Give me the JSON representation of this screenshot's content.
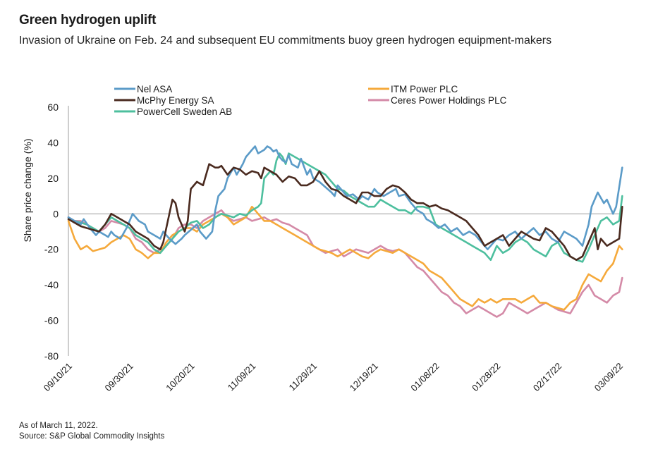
{
  "header": {
    "title": "Green hydrogen uplift",
    "subtitle": "Invasion of Ukraine on Feb. 24 and subsequent EU commitments buoy green hydrogen equipment-makers"
  },
  "footer": {
    "note": "As of March 11, 2022.",
    "source": "Source: S&P Global Commodity Insights"
  },
  "chart_data": {
    "type": "line",
    "title": "Green hydrogen uplift",
    "xlabel": "",
    "ylabel": "Share price change (%)",
    "ylim": [
      -80,
      60
    ],
    "yticks": [
      60,
      40,
      20,
      0,
      -20,
      -40,
      -60,
      -80
    ],
    "x_unit": "days since 09/10/21",
    "xlim": [
      0,
      181
    ],
    "xticks": [
      {
        "day": 0,
        "label": "09/10/21"
      },
      {
        "day": 20,
        "label": "09/30/21"
      },
      {
        "day": 40,
        "label": "10/20/21"
      },
      {
        "day": 60,
        "label": "11/09/21"
      },
      {
        "day": 80,
        "label": "11/29/21"
      },
      {
        "day": 100,
        "label": "12/19/21"
      },
      {
        "day": 120,
        "label": "01/08/22"
      },
      {
        "day": 140,
        "label": "01/28/22"
      },
      {
        "day": 160,
        "label": "02/17/22"
      },
      {
        "day": 180,
        "label": "03/09/22"
      }
    ],
    "grid": false,
    "zero_line": true,
    "legend": {
      "position": "top",
      "columns": 2
    },
    "series": [
      {
        "name": "Nel ASA",
        "color": "#5b9bc8",
        "x": [
          0,
          2,
          4,
          5,
          7,
          9,
          10,
          12,
          13,
          14,
          15,
          17,
          19,
          21,
          22,
          23,
          25,
          26,
          28,
          30,
          31,
          33,
          35,
          37,
          38,
          40,
          42,
          43,
          44,
          45,
          47,
          48,
          49,
          51,
          52,
          54,
          55,
          57,
          58,
          59,
          60,
          61,
          62,
          64,
          65,
          66,
          67,
          68,
          69,
          70,
          71,
          72,
          73,
          75,
          76,
          78,
          79,
          80,
          82,
          84,
          86,
          87,
          88,
          90,
          91,
          93,
          95,
          96,
          98,
          100,
          101,
          103,
          105,
          107,
          108,
          110,
          112,
          114,
          116,
          117,
          119,
          121,
          123,
          125,
          127,
          129,
          131,
          133,
          135,
          137,
          138,
          140,
          142,
          144,
          146,
          148,
          150,
          152,
          154,
          156,
          158,
          160,
          162,
          164,
          166,
          168,
          170,
          171,
          173,
          175,
          176,
          178,
          179,
          181
        ],
        "y": [
          -2,
          -4,
          -6,
          -3,
          -8,
          -12,
          -10,
          -12,
          -13,
          -10,
          -12,
          -14,
          -8,
          0,
          -2,
          -4,
          -6,
          -10,
          -12,
          -14,
          -10,
          -14,
          -17,
          -14,
          -12,
          -9,
          -6,
          -10,
          -12,
          -14,
          -10,
          2,
          10,
          14,
          20,
          26,
          22,
          28,
          32,
          34,
          36,
          38,
          34,
          36,
          38,
          37,
          35,
          36,
          32,
          30,
          29,
          33,
          28,
          26,
          31,
          22,
          25,
          20,
          18,
          15,
          12,
          10,
          16,
          12,
          10,
          11,
          8,
          10,
          8,
          14,
          12,
          10,
          12,
          14,
          10,
          11,
          6,
          2,
          0,
          -3,
          -5,
          -8,
          -6,
          -10,
          -8,
          -12,
          -10,
          -12,
          -16,
          -20,
          -18,
          -14,
          -15,
          -12,
          -10,
          -14,
          -11,
          -8,
          -12,
          -10,
          -14,
          -16,
          -10,
          -12,
          -14,
          -18,
          -6,
          4,
          12,
          6,
          8,
          0,
          4,
          26
        ],
        "_note": "approximate readings"
      },
      {
        "name": "McPhy Energy SA",
        "color": "#4a2a1f",
        "x": [
          0,
          2,
          4,
          6,
          8,
          10,
          12,
          14,
          16,
          18,
          20,
          22,
          24,
          26,
          28,
          30,
          31,
          32,
          34,
          35,
          36,
          38,
          39,
          40,
          42,
          44,
          46,
          48,
          49,
          50,
          52,
          54,
          56,
          58,
          60,
          62,
          63,
          64,
          66,
          68,
          70,
          72,
          74,
          76,
          78,
          80,
          82,
          84,
          86,
          88,
          90,
          92,
          94,
          96,
          98,
          100,
          102,
          104,
          106,
          108,
          110,
          112,
          114,
          116,
          118,
          120,
          122,
          124,
          126,
          128,
          130,
          132,
          134,
          136,
          138,
          140,
          142,
          144,
          146,
          148,
          150,
          152,
          154,
          156,
          158,
          160,
          162,
          164,
          166,
          168,
          170,
          172,
          173,
          174,
          176,
          178,
          180,
          181
        ],
        "y": [
          -3,
          -5,
          -7,
          -8,
          -9,
          -10,
          -6,
          0,
          -2,
          -4,
          -6,
          -10,
          -12,
          -14,
          -18,
          -20,
          -16,
          -8,
          8,
          6,
          -2,
          -10,
          -4,
          14,
          18,
          16,
          28,
          26,
          26,
          27,
          22,
          26,
          25,
          22,
          24,
          23,
          20,
          26,
          24,
          22,
          18,
          21,
          20,
          16,
          16,
          18,
          24,
          18,
          14,
          13,
          10,
          8,
          6,
          12,
          12,
          10,
          10,
          14,
          16,
          15,
          12,
          8,
          6,
          6,
          4,
          5,
          3,
          2,
          0,
          -2,
          -4,
          -8,
          -12,
          -18,
          -16,
          -14,
          -12,
          -18,
          -14,
          -10,
          -12,
          -14,
          -15,
          -8,
          -10,
          -14,
          -18,
          -24,
          -26,
          -24,
          -16,
          -8,
          -20,
          -14,
          -18,
          -16,
          -14,
          4
        ]
      },
      {
        "name": "PowerCell Sweden AB",
        "color": "#4dbf9e",
        "x": [
          0,
          2,
          4,
          6,
          8,
          10,
          12,
          14,
          16,
          18,
          20,
          22,
          24,
          26,
          28,
          30,
          32,
          34,
          36,
          38,
          40,
          42,
          44,
          46,
          48,
          50,
          52,
          54,
          56,
          58,
          60,
          62,
          63,
          64,
          65,
          66,
          67,
          68,
          69,
          70,
          71,
          72,
          74,
          76,
          78,
          80,
          82,
          84,
          86,
          88,
          90,
          92,
          94,
          96,
          98,
          100,
          102,
          104,
          106,
          108,
          110,
          112,
          114,
          116,
          118,
          120,
          122,
          124,
          126,
          128,
          130,
          132,
          134,
          136,
          138,
          140,
          142,
          144,
          146,
          148,
          150,
          152,
          154,
          156,
          158,
          160,
          162,
          164,
          166,
          168,
          170,
          172,
          174,
          176,
          178,
          180,
          181
        ],
        "y": [
          -3,
          -4,
          -5,
          -6,
          -8,
          -10,
          -6,
          -2,
          -4,
          -6,
          -8,
          -12,
          -14,
          -16,
          -20,
          -22,
          -18,
          -14,
          -10,
          -8,
          -5,
          -4,
          -8,
          -6,
          -2,
          0,
          -1,
          -2,
          0,
          -1,
          2,
          4,
          6,
          20,
          22,
          24,
          22,
          30,
          34,
          32,
          28,
          34,
          32,
          30,
          28,
          26,
          24,
          22,
          18,
          14,
          13,
          10,
          8,
          6,
          4,
          4,
          8,
          6,
          4,
          2,
          2,
          0,
          4,
          4,
          3,
          -6,
          -8,
          -10,
          -12,
          -14,
          -16,
          -18,
          -20,
          -22,
          -26,
          -18,
          -22,
          -20,
          -16,
          -14,
          -16,
          -20,
          -22,
          -24,
          -18,
          -16,
          -22,
          -24,
          -26,
          -27,
          -20,
          -12,
          -4,
          -2,
          -6,
          -4,
          10
        ]
      },
      {
        "name": "ITM Power PLC",
        "color": "#f5a93b",
        "x": [
          0,
          2,
          4,
          6,
          8,
          10,
          12,
          14,
          16,
          18,
          20,
          22,
          24,
          26,
          28,
          30,
          32,
          34,
          36,
          38,
          40,
          42,
          44,
          46,
          48,
          50,
          52,
          54,
          56,
          58,
          60,
          61,
          62,
          64,
          66,
          68,
          70,
          72,
          74,
          76,
          78,
          80,
          82,
          84,
          86,
          88,
          90,
          92,
          94,
          96,
          98,
          100,
          102,
          104,
          106,
          108,
          110,
          112,
          114,
          116,
          118,
          120,
          122,
          124,
          126,
          128,
          130,
          132,
          134,
          136,
          138,
          140,
          142,
          144,
          146,
          148,
          150,
          152,
          154,
          156,
          158,
          160,
          162,
          164,
          166,
          168,
          170,
          172,
          174,
          176,
          178,
          180,
          181
        ],
        "y": [
          -4,
          -14,
          -20,
          -18,
          -21,
          -20,
          -19,
          -16,
          -14,
          -12,
          -14,
          -20,
          -22,
          -25,
          -22,
          -22,
          -16,
          -12,
          -10,
          -8,
          -8,
          -10,
          -6,
          -4,
          -2,
          0,
          -2,
          -6,
          -4,
          -2,
          4,
          2,
          0,
          -4,
          -4,
          -6,
          -8,
          -10,
          -12,
          -14,
          -16,
          -18,
          -20,
          -21,
          -22,
          -24,
          -22,
          -20,
          -22,
          -24,
          -25,
          -22,
          -20,
          -21,
          -22,
          -20,
          -22,
          -24,
          -26,
          -28,
          -32,
          -34,
          -36,
          -40,
          -44,
          -48,
          -50,
          -52,
          -48,
          -50,
          -48,
          -50,
          -48,
          -48,
          -48,
          -50,
          -48,
          -46,
          -50,
          -50,
          -52,
          -53,
          -54,
          -50,
          -48,
          -40,
          -34,
          -36,
          -38,
          -32,
          -28,
          -18,
          -20
        ]
      },
      {
        "name": "Ceres Power Holdings PLC",
        "color": "#d48aa7",
        "x": [
          0,
          2,
          4,
          6,
          8,
          10,
          12,
          14,
          16,
          18,
          20,
          22,
          24,
          26,
          28,
          30,
          32,
          34,
          36,
          38,
          40,
          42,
          44,
          46,
          48,
          50,
          52,
          54,
          56,
          58,
          60,
          62,
          64,
          66,
          68,
          70,
          72,
          74,
          76,
          78,
          80,
          82,
          84,
          86,
          88,
          90,
          92,
          94,
          96,
          98,
          100,
          102,
          104,
          106,
          108,
          110,
          112,
          114,
          116,
          118,
          120,
          122,
          124,
          126,
          128,
          130,
          132,
          134,
          136,
          138,
          140,
          142,
          144,
          146,
          148,
          150,
          152,
          154,
          156,
          158,
          160,
          162,
          164,
          166,
          168,
          170,
          172,
          174,
          176,
          178,
          180,
          181
        ],
        "y": [
          -2,
          -4,
          -4,
          -6,
          -8,
          -10,
          -8,
          -4,
          -5,
          -6,
          -8,
          -14,
          -16,
          -20,
          -22,
          -20,
          -18,
          -14,
          -8,
          -6,
          -6,
          -8,
          -4,
          -2,
          0,
          2,
          -2,
          -4,
          -3,
          -2,
          -4,
          -3,
          -2,
          -4,
          -3,
          -5,
          -6,
          -8,
          -10,
          -12,
          -18,
          -20,
          -22,
          -21,
          -20,
          -24,
          -22,
          -20,
          -21,
          -22,
          -20,
          -18,
          -20,
          -21,
          -20,
          -22,
          -26,
          -30,
          -32,
          -36,
          -40,
          -44,
          -46,
          -50,
          -52,
          -56,
          -54,
          -52,
          -54,
          -56,
          -58,
          -56,
          -50,
          -52,
          -54,
          -56,
          -54,
          -52,
          -50,
          -52,
          -54,
          -55,
          -56,
          -50,
          -44,
          -40,
          -46,
          -48,
          -50,
          -46,
          -44,
          -36
        ]
      }
    ]
  }
}
